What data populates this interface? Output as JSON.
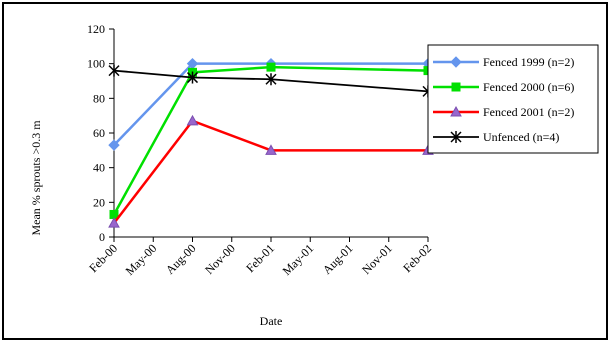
{
  "chart_data": {
    "type": "line",
    "title": "",
    "xlabel": "Date",
    "ylabel": "Mean % sprouts >0.3 m",
    "ylim": [
      0,
      120
    ],
    "yticks": [
      0,
      20,
      40,
      60,
      80,
      100,
      120
    ],
    "x_tick_labels": [
      "Feb-00",
      "May-00",
      "Aug-00",
      "Nov-00",
      "Feb-01",
      "May-01",
      "Aug-01",
      "Nov-01",
      "Feb-02"
    ],
    "grid": false,
    "legend_position": "right",
    "series": [
      {
        "name": "Fenced 1999 (n=2)",
        "color": "#6495ED",
        "marker": "diamond",
        "points": [
          {
            "x": "Feb-00",
            "y": 53
          },
          {
            "x": "Aug-00",
            "y": 100
          },
          {
            "x": "Feb-01",
            "y": 100
          },
          {
            "x": "Feb-02",
            "y": 100
          }
        ]
      },
      {
        "name": "Fenced 2000 (n=6)",
        "color": "#00E000",
        "marker": "square",
        "points": [
          {
            "x": "Feb-00",
            "y": 13
          },
          {
            "x": "Aug-00",
            "y": 95
          },
          {
            "x": "Feb-01",
            "y": 98
          },
          {
            "x": "Feb-02",
            "y": 96
          }
        ]
      },
      {
        "name": "Fenced 2001 (n=2)",
        "color": "#FF0000",
        "marker": "triangle",
        "points": [
          {
            "x": "Feb-00",
            "y": 8
          },
          {
            "x": "Aug-00",
            "y": 67
          },
          {
            "x": "Feb-01",
            "y": 50
          },
          {
            "x": "Feb-02",
            "y": 50
          }
        ]
      },
      {
        "name": "Unfenced (n=4)",
        "color": "#000000",
        "marker": "asterisk",
        "points": [
          {
            "x": "Feb-00",
            "y": 96
          },
          {
            "x": "Aug-00",
            "y": 92
          },
          {
            "x": "Feb-01",
            "y": 91
          },
          {
            "x": "Feb-02",
            "y": 84
          }
        ]
      }
    ]
  }
}
